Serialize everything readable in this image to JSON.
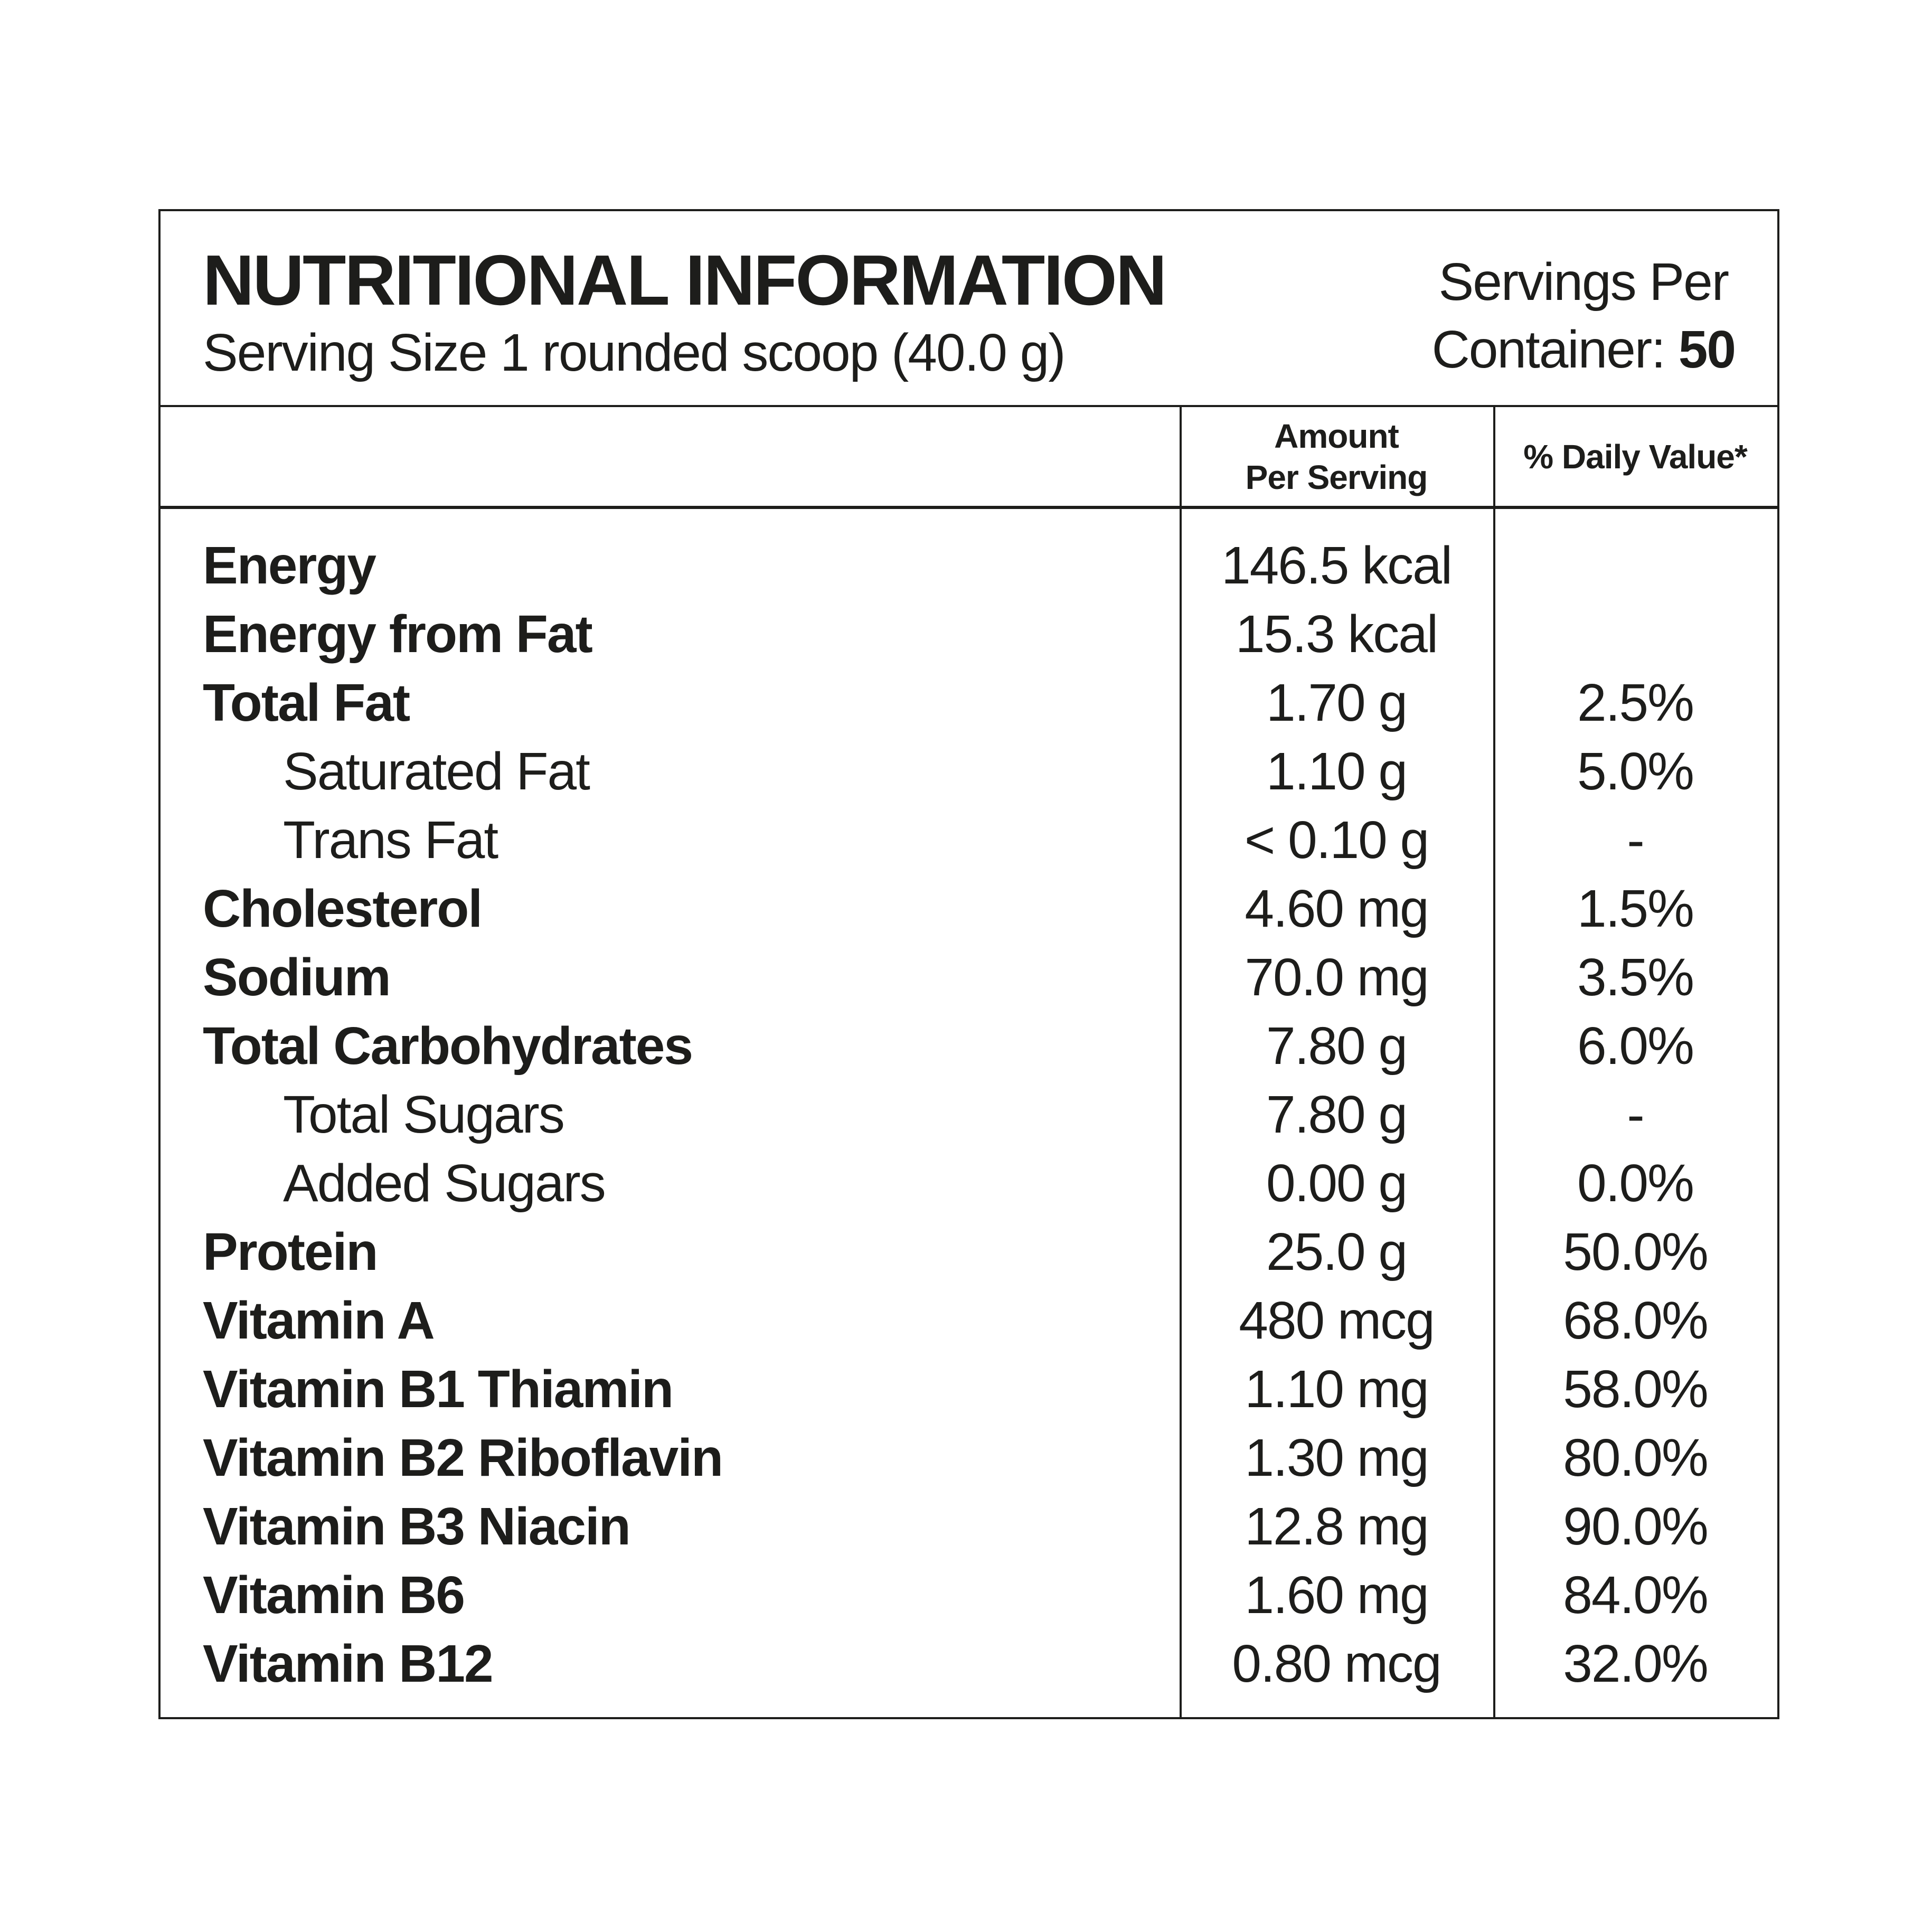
{
  "label": {
    "title": "NUTRITIONAL INFORMATION",
    "serving_size": "Serving Size 1 rounded scoop (40.0 g)",
    "servings_per": {
      "line1": "Servings Per",
      "line2_label": "Container:",
      "count": "50"
    }
  },
  "table": {
    "columns": {
      "amount_line1": "Amount",
      "amount_line2": "Per Serving",
      "daily_value": "% Daily Value*"
    },
    "rows": [
      {
        "name": "Energy",
        "amount": "146.5 kcal",
        "dv": "",
        "sub": false
      },
      {
        "name": "Energy from Fat",
        "amount": "15.3 kcal",
        "dv": "",
        "sub": false
      },
      {
        "name": "Total Fat",
        "amount": "1.70 g",
        "dv": "2.5%",
        "sub": false
      },
      {
        "name": "Saturated Fat",
        "amount": "1.10 g",
        "dv": "5.0%",
        "sub": true
      },
      {
        "name": "Trans Fat",
        "amount": "< 0.10 g",
        "dv": "-",
        "sub": true
      },
      {
        "name": "Cholesterol",
        "amount": "4.60 mg",
        "dv": "1.5%",
        "sub": false
      },
      {
        "name": "Sodium",
        "amount": "70.0 mg",
        "dv": "3.5%",
        "sub": false
      },
      {
        "name": "Total Carbohydrates",
        "amount": "7.80 g",
        "dv": "6.0%",
        "sub": false
      },
      {
        "name": "Total Sugars",
        "amount": "7.80 g",
        "dv": "-",
        "sub": true
      },
      {
        "name": "Added Sugars",
        "amount": "0.00 g",
        "dv": "0.0%",
        "sub": true
      },
      {
        "name": "Protein",
        "amount": "25.0 g",
        "dv": "50.0%",
        "sub": false
      },
      {
        "name": "Vitamin A",
        "amount": "480 mcg",
        "dv": "68.0%",
        "sub": false
      },
      {
        "name": "Vitamin B1 Thiamin",
        "amount": "1.10 mg",
        "dv": "58.0%",
        "sub": false
      },
      {
        "name": "Vitamin B2 Riboflavin",
        "amount": "1.30 mg",
        "dv": "80.0%",
        "sub": false
      },
      {
        "name": "Vitamin B3 Niacin",
        "amount": "12.8 mg",
        "dv": "90.0%",
        "sub": false
      },
      {
        "name": "Vitamin B6",
        "amount": "1.60 mg",
        "dv": "84.0%",
        "sub": false
      },
      {
        "name": "Vitamin B12",
        "amount": "0.80 mcg",
        "dv": "32.0%",
        "sub": false
      }
    ]
  },
  "colors": {
    "text": "#1d1d1b",
    "border": "#1d1d1b",
    "background": "#ffffff"
  }
}
